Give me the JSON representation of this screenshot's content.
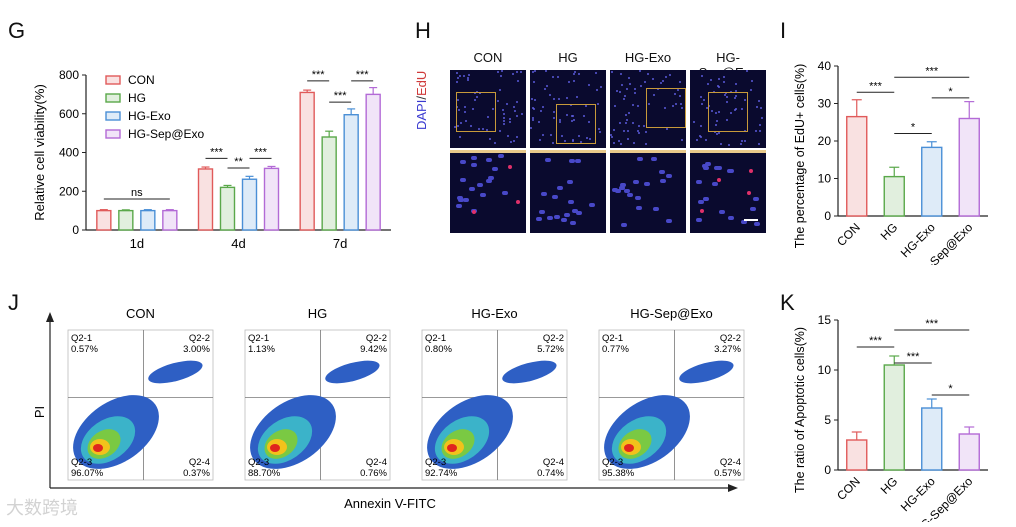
{
  "panels": {
    "g": "G",
    "h": "H",
    "i": "I",
    "j": "J",
    "k": "K"
  },
  "chart_g": {
    "type": "bar",
    "ylabel": "Relative cell viability(%)",
    "categories": [
      "1d",
      "4d",
      "7d"
    ],
    "yticks": [
      "0",
      "200",
      "400",
      "600",
      "800"
    ],
    "ylim": [
      0,
      800
    ],
    "series": [
      {
        "name": "CON",
        "values": [
          100,
          315,
          710
        ],
        "errors": [
          5,
          10,
          12
        ],
        "color": "#e05a5a"
      },
      {
        "name": "HG",
        "values": [
          100,
          220,
          480
        ],
        "errors": [
          4,
          10,
          30
        ],
        "color": "#5aa84a"
      },
      {
        "name": "HG-Exo",
        "values": [
          100,
          262,
          595
        ],
        "errors": [
          5,
          15,
          30
        ],
        "color": "#4a8fd6"
      },
      {
        "name": "HG-Sep@Exo",
        "values": [
          100,
          318,
          700
        ],
        "errors": [
          5,
          10,
          35
        ],
        "color": "#b36ad6"
      }
    ],
    "significance": [
      "ns",
      "***",
      "**",
      "***",
      "***",
      "***",
      "***"
    ]
  },
  "panel_h": {
    "side_label_dapi": "DAPI",
    "side_label_sep": "/",
    "side_label_edu": "EdU",
    "columns": [
      "CON",
      "HG",
      "HG-Exo",
      "HG-Sep@Exo"
    ]
  },
  "chart_i": {
    "type": "bar",
    "ylabel": "The percentage of EdU+ cells(%)",
    "categories": [
      "CON",
      "HG",
      "HG-Exo",
      "HG-Sep@Exo"
    ],
    "yticks": [
      "0",
      "10",
      "20",
      "30",
      "40"
    ],
    "ylim": [
      0,
      40
    ],
    "values": [
      26.5,
      10.5,
      18.3,
      26.0
    ],
    "errors": [
      4.5,
      2.5,
      1.5,
      4.5
    ],
    "colors": [
      "#e05a5a",
      "#5aa84a",
      "#4a8fd6",
      "#b36ad6"
    ],
    "significance": [
      "***",
      "***",
      "*",
      "*"
    ]
  },
  "panel_j": {
    "xlabel": "Annexin V-FITC",
    "ylabel": "PI",
    "plots": [
      {
        "title": "CON",
        "q1": "Q2-1",
        "q1v": "0.57%",
        "q2": "Q2-2",
        "q2v": "3.00%",
        "q3": "Q2-3",
        "q3v": "96.07%",
        "q4": "Q2-4",
        "q4v": "0.37%"
      },
      {
        "title": "HG",
        "q1": "Q2-1",
        "q1v": "1.13%",
        "q2": "Q2-2",
        "q2v": "9.42%",
        "q3": "Q2-3",
        "q3v": "88.70%",
        "q4": "Q2-4",
        "q4v": "0.76%"
      },
      {
        "title": "HG-Exo",
        "q1": "Q2-1",
        "q1v": "0.80%",
        "q2": "Q2-2",
        "q2v": "5.72%",
        "q3": "Q2-3",
        "q3v": "92.74%",
        "q4": "Q2-4",
        "q4v": "0.74%"
      },
      {
        "title": "HG-Sep@Exo",
        "q1": "Q2-1",
        "q1v": "0.77%",
        "q2": "Q2-2",
        "q2v": "3.27%",
        "q3": "Q2-3",
        "q3v": "95.38%",
        "q4": "Q2-4",
        "q4v": "0.57%"
      }
    ]
  },
  "chart_k": {
    "type": "bar",
    "ylabel": "The ratio of Apoptotic cells(%)",
    "categories": [
      "CON",
      "HG",
      "HG-Exo",
      "HG-Sep@Exo"
    ],
    "yticks": [
      "0",
      "5",
      "10",
      "15"
    ],
    "ylim": [
      0,
      15
    ],
    "values": [
      3.0,
      10.5,
      6.2,
      3.6
    ],
    "errors": [
      0.8,
      0.9,
      0.9,
      0.7
    ],
    "colors": [
      "#e05a5a",
      "#5aa84a",
      "#4a8fd6",
      "#b36ad6"
    ],
    "significance": [
      "***",
      "***",
      "***",
      "*"
    ]
  },
  "watermark": "大数跨境"
}
